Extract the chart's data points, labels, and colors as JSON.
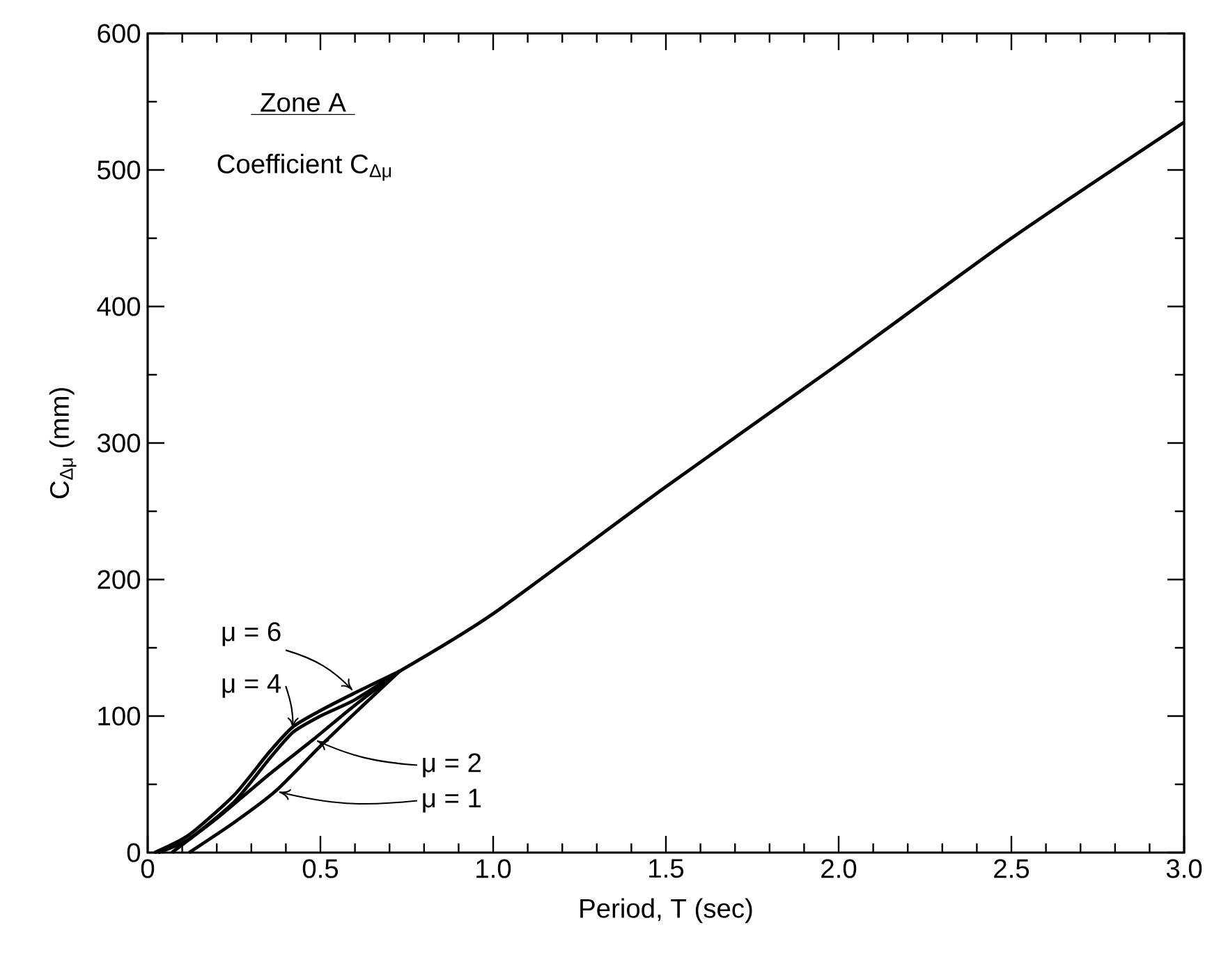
{
  "chart_data": {
    "type": "line",
    "xlabel": "Period, T (sec)",
    "ylabel": "C$_{Δμ}$ (mm)",
    "annotations": [
      "Zone A",
      "Coefficient C$_{Δμ}$"
    ],
    "xlim": [
      0,
      3.0
    ],
    "ylim": [
      0,
      600
    ],
    "xticks": [
      0,
      {
        "value": 0.5,
        "label": "0.5"
      },
      {
        "value": 1.0,
        "label": "1.0"
      },
      {
        "value": 1.5,
        "label": "1.5"
      },
      {
        "value": 2.0,
        "label": "2.0"
      },
      {
        "value": 2.5,
        "label": "2.5"
      },
      {
        "value": 3.0,
        "label": "3.0"
      }
    ],
    "yticks": [
      0,
      100,
      200,
      300,
      400,
      500,
      600
    ],
    "grid": false,
    "legend": "bottom left",
    "marker": "none",
    "line_style": "solid",
    "series": [
      {
        "name": "μ = 6",
        "color": "#000000",
        "x": [
          0.02,
          0.12,
          0.25,
          0.35,
          0.42,
          0.5,
          0.6,
          0.73
        ],
        "values": [
          0,
          13,
          42,
          73,
          92,
          104,
          117,
          133
        ]
      },
      {
        "name": "μ = 4",
        "color": "#000000",
        "x": [
          0.03,
          0.12,
          0.25,
          0.35,
          0.42,
          0.5,
          0.6,
          0.73
        ],
        "values": [
          0,
          10,
          37,
          68,
          88,
          100,
          112,
          133
        ]
      },
      {
        "name": "μ = 2",
        "color": "#000000",
        "x": [
          0.07,
          0.2,
          0.35,
          0.48,
          0.6,
          0.73
        ],
        "values": [
          0,
          25,
          57,
          83,
          108,
          133
        ]
      },
      {
        "name": "μ = 1",
        "color": "#000000",
        "x": [
          0.12,
          0.25,
          0.37,
          0.5,
          0.62,
          0.73
        ],
        "values": [
          0,
          22,
          45,
          78,
          107,
          133
        ]
      },
      {
        "color": "#000000",
        "x": [
          0.73,
          1.0,
          1.5,
          2.0,
          2.5,
          3.0
        ],
        "values": [
          133,
          175,
          268,
          358,
          450,
          535
        ]
      }
    ]
  }
}
